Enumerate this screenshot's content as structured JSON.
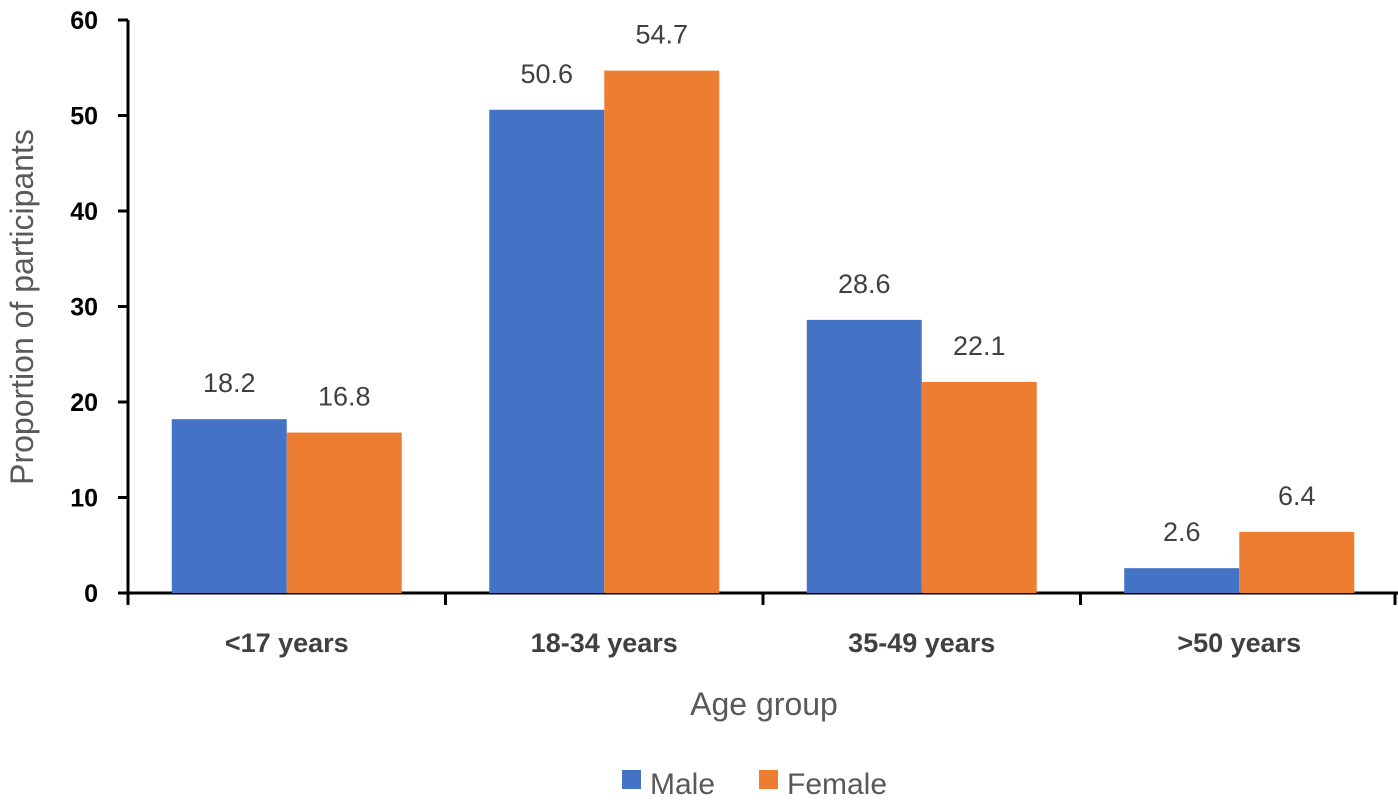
{
  "chart_data": {
    "type": "bar",
    "title": "",
    "xlabel": "Age group",
    "ylabel": "Proportion of participants",
    "categories": [
      "<17 years",
      "18-34 years",
      "35-49 years",
      ">50 years"
    ],
    "series": [
      {
        "name": "Male",
        "color": "#4472C4",
        "values": [
          18.2,
          50.6,
          28.6,
          2.6
        ]
      },
      {
        "name": "Female",
        "color": "#ED7D31",
        "values": [
          16.8,
          54.7,
          22.1,
          6.4
        ]
      }
    ],
    "ylim": [
      0,
      60
    ],
    "yticks": [
      0,
      10,
      20,
      30,
      40,
      50,
      60
    ],
    "grid": false,
    "legend_position": "bottom",
    "data_labels": true
  }
}
